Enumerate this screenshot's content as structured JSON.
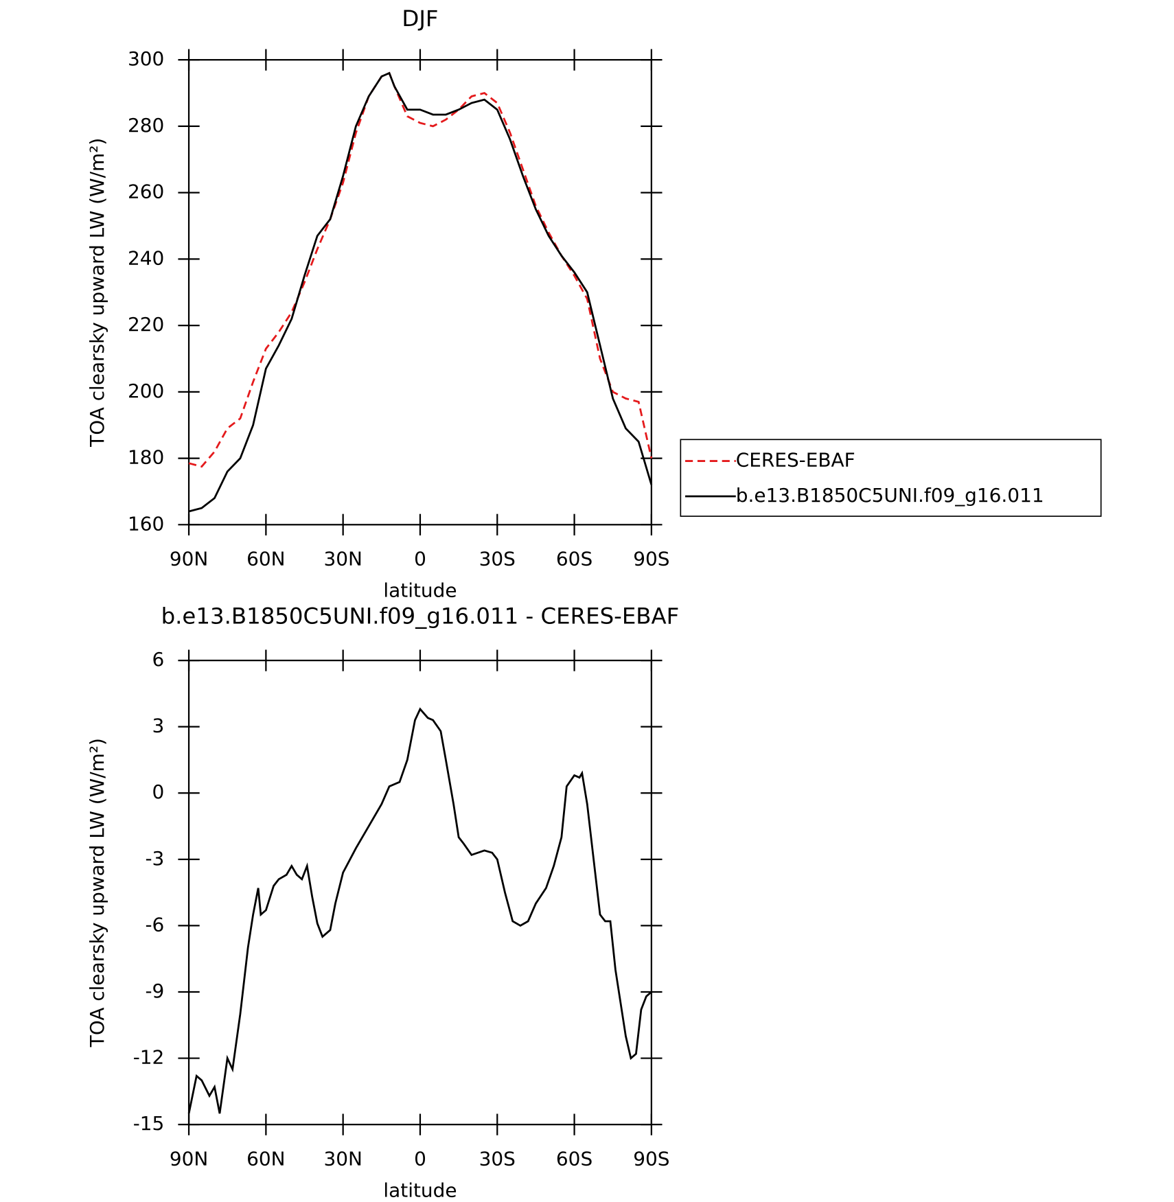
{
  "chart_data": [
    {
      "type": "line",
      "title": "DJF",
      "x_label": "latitude",
      "y_label": "TOA clearsky upward LW (W/m²)",
      "xlim": [
        90,
        -90
      ],
      "xticks": [
        {
          "value": 90,
          "label": "90N"
        },
        {
          "value": 60,
          "label": "60N"
        },
        {
          "value": 30,
          "label": "30N"
        },
        0,
        {
          "value": -30,
          "label": "30S"
        },
        {
          "value": -60,
          "label": "60S"
        },
        {
          "value": -90,
          "label": "90S"
        }
      ],
      "ylim": [
        160,
        300
      ],
      "yticks": [
        160,
        180,
        200,
        220,
        240,
        260,
        280,
        300
      ],
      "x": [
        90,
        85,
        80,
        75,
        70,
        65,
        60,
        55,
        50,
        45,
        40,
        35,
        30,
        25,
        20,
        15,
        12,
        10,
        5,
        0,
        -5,
        -10,
        -15,
        -20,
        -25,
        -30,
        -35,
        -40,
        -45,
        -50,
        -55,
        -60,
        -65,
        -70,
        -75,
        -80,
        -85,
        -90
      ],
      "series": [
        {
          "name": "CERES-EBAF",
          "color": "#e41a1c",
          "dashed": true,
          "values": [
            178.5,
            177.5,
            182,
            189,
            192,
            203,
            213,
            218,
            224,
            233,
            243,
            252,
            263,
            278,
            289,
            295,
            296,
            292,
            283,
            281,
            280,
            282,
            285,
            289,
            290,
            287,
            278,
            267,
            256,
            248,
            241,
            235,
            228,
            210,
            200,
            198,
            197,
            180
          ]
        },
        {
          "name": "b.e13.B1850C5UNI.f09_g16.011",
          "color": "#000000",
          "dashed": false,
          "values": [
            164,
            165,
            168,
            176,
            180,
            190,
            207,
            214,
            222,
            235,
            247,
            252,
            265,
            280,
            289,
            295,
            296,
            292,
            285,
            285,
            283.5,
            283.5,
            285,
            287,
            288,
            285,
            276,
            265,
            255,
            247,
            241,
            236,
            230,
            214,
            198,
            189,
            185,
            172
          ]
        }
      ]
    },
    {
      "type": "line",
      "title": "b.e13.B1850C5UNI.f09_g16.011 - CERES-EBAF",
      "x_label": "latitude",
      "y_label": "TOA clearsky upward LW (W/m²)",
      "xlim": [
        90,
        -90
      ],
      "xticks": [
        {
          "value": 90,
          "label": "90N"
        },
        {
          "value": 60,
          "label": "60N"
        },
        {
          "value": 30,
          "label": "30N"
        },
        0,
        {
          "value": -30,
          "label": "30S"
        },
        {
          "value": -60,
          "label": "60S"
        },
        {
          "value": -90,
          "label": "90S"
        }
      ],
      "ylim": [
        -15,
        6
      ],
      "yticks": [
        -15,
        -12,
        -9,
        -6,
        -3,
        0,
        3,
        6
      ],
      "x": [
        90,
        87,
        85,
        82,
        80,
        78,
        75,
        73,
        70,
        67,
        65,
        63,
        62,
        60,
        57,
        55,
        52,
        50,
        48,
        46,
        44,
        42,
        40,
        38,
        35,
        33,
        30,
        25,
        20,
        15,
        12,
        8,
        5,
        2,
        0,
        -3,
        -5,
        -8,
        -10,
        -13,
        -15,
        -17,
        -20,
        -25,
        -28,
        -30,
        -33,
        -36,
        -39,
        -42,
        -45,
        -49,
        -52,
        -55,
        -57,
        -60,
        -62,
        -63,
        -65,
        -67,
        -70,
        -72,
        -74,
        -76,
        -78,
        -80,
        -82,
        -84,
        -86,
        -88,
        -90
      ],
      "series": [
        {
          "name": null,
          "color": "#000000",
          "dashed": false,
          "values": [
            -14.5,
            -12.8,
            -13,
            -13.7,
            -13.3,
            -14.5,
            -12,
            -12.5,
            -10,
            -7,
            -5.5,
            -4.3,
            -5.5,
            -5.3,
            -4.2,
            -3.9,
            -3.7,
            -3.3,
            -3.7,
            -3.9,
            -3.3,
            -4.7,
            -5.9,
            -6.5,
            -6.2,
            -5,
            -3.6,
            -2.5,
            -1.5,
            -0.5,
            0.3,
            0.5,
            1.5,
            3.3,
            3.8,
            3.4,
            3.3,
            2.8,
            1.5,
            -0.5,
            -2,
            -2.3,
            -2.8,
            -2.6,
            -2.7,
            -3,
            -4.5,
            -5.8,
            -6,
            -5.8,
            -5,
            -4.3,
            -3.3,
            -2,
            0.3,
            0.8,
            0.7,
            0.9,
            -0.5,
            -2.5,
            -5.5,
            -5.8,
            -5.8,
            -8,
            -9.5,
            -11,
            -12,
            -11.8,
            -9.8,
            -9.2,
            -9
          ]
        }
      ]
    }
  ]
}
